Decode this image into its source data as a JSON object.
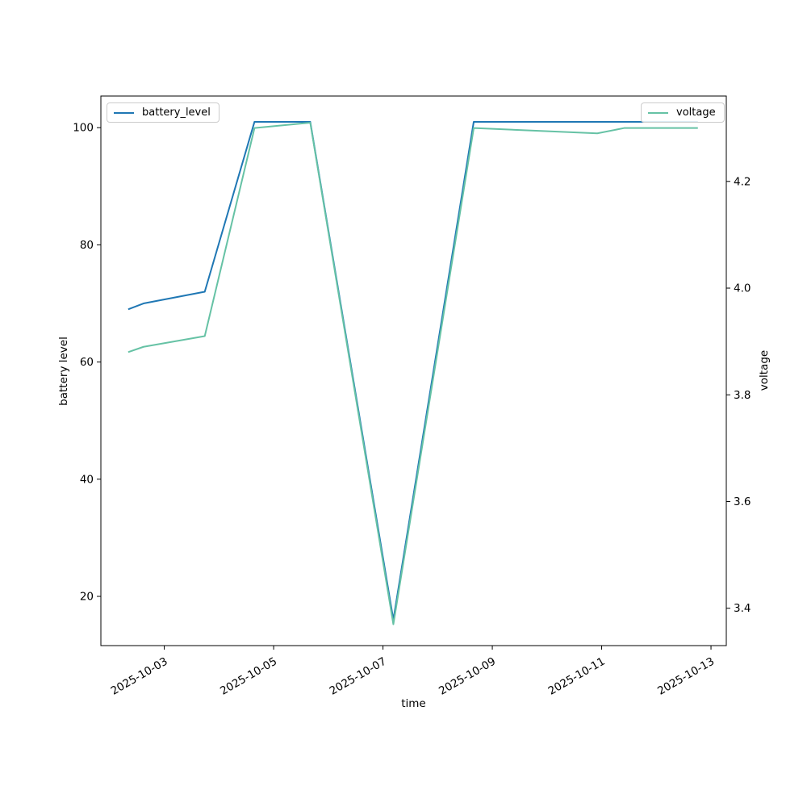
{
  "chart_data": {
    "type": "line",
    "title": "",
    "xlabel": "time",
    "grid": false,
    "background": "#ffffff",
    "x_timestamps": [
      "2025-10-02 08:00",
      "2025-10-02 15:00",
      "2025-10-03 18:00",
      "2025-10-04 16:00",
      "2025-10-05 16:00",
      "2025-10-07 05:00",
      "2025-10-08 16:00",
      "2025-10-10 22:00",
      "2025-10-11 10:00",
      "2025-10-12 18:00"
    ],
    "x_days": [
      -0.66,
      -0.38,
      0.74,
      1.65,
      2.67,
      4.19,
      5.66,
      7.92,
      8.41,
      9.76
    ],
    "x_range_days": [
      -1.16,
      10.28
    ],
    "x_tick_days": [
      0,
      2,
      4,
      6,
      8,
      10
    ],
    "x_tick_labels": [
      "2025-10-03",
      "2025-10-05",
      "2025-10-07",
      "2025-10-09",
      "2025-10-11",
      "2025-10-13"
    ],
    "series": [
      {
        "name": "battery_level",
        "axis": "left",
        "color": "#1f77b4",
        "values": [
          69,
          70,
          72,
          101,
          101,
          16,
          101,
          101,
          101,
          101
        ]
      },
      {
        "name": "voltage",
        "axis": "right",
        "color": "#66c2a5",
        "values": [
          3.88,
          3.89,
          3.91,
          4.3,
          4.31,
          3.37,
          4.3,
          4.29,
          4.3,
          4.3
        ]
      }
    ],
    "left_axis": {
      "label": "battery level",
      "tick_values": [
        20,
        40,
        60,
        80,
        100
      ],
      "tick_labels": [
        "20",
        "40",
        "60",
        "80",
        "100"
      ],
      "range": [
        11.6,
        105.4
      ]
    },
    "right_axis": {
      "label": "voltage",
      "tick_values": [
        3.4,
        3.6,
        3.8,
        4.0,
        4.2
      ],
      "tick_labels": [
        "3.4",
        "3.6",
        "3.8",
        "4.0",
        "4.2"
      ],
      "range": [
        3.33,
        4.36
      ]
    },
    "legend": [
      {
        "label": "battery_level",
        "color": "#1f77b4",
        "position": "upper-left"
      },
      {
        "label": "voltage",
        "color": "#66c2a5",
        "position": "upper-right"
      }
    ]
  }
}
